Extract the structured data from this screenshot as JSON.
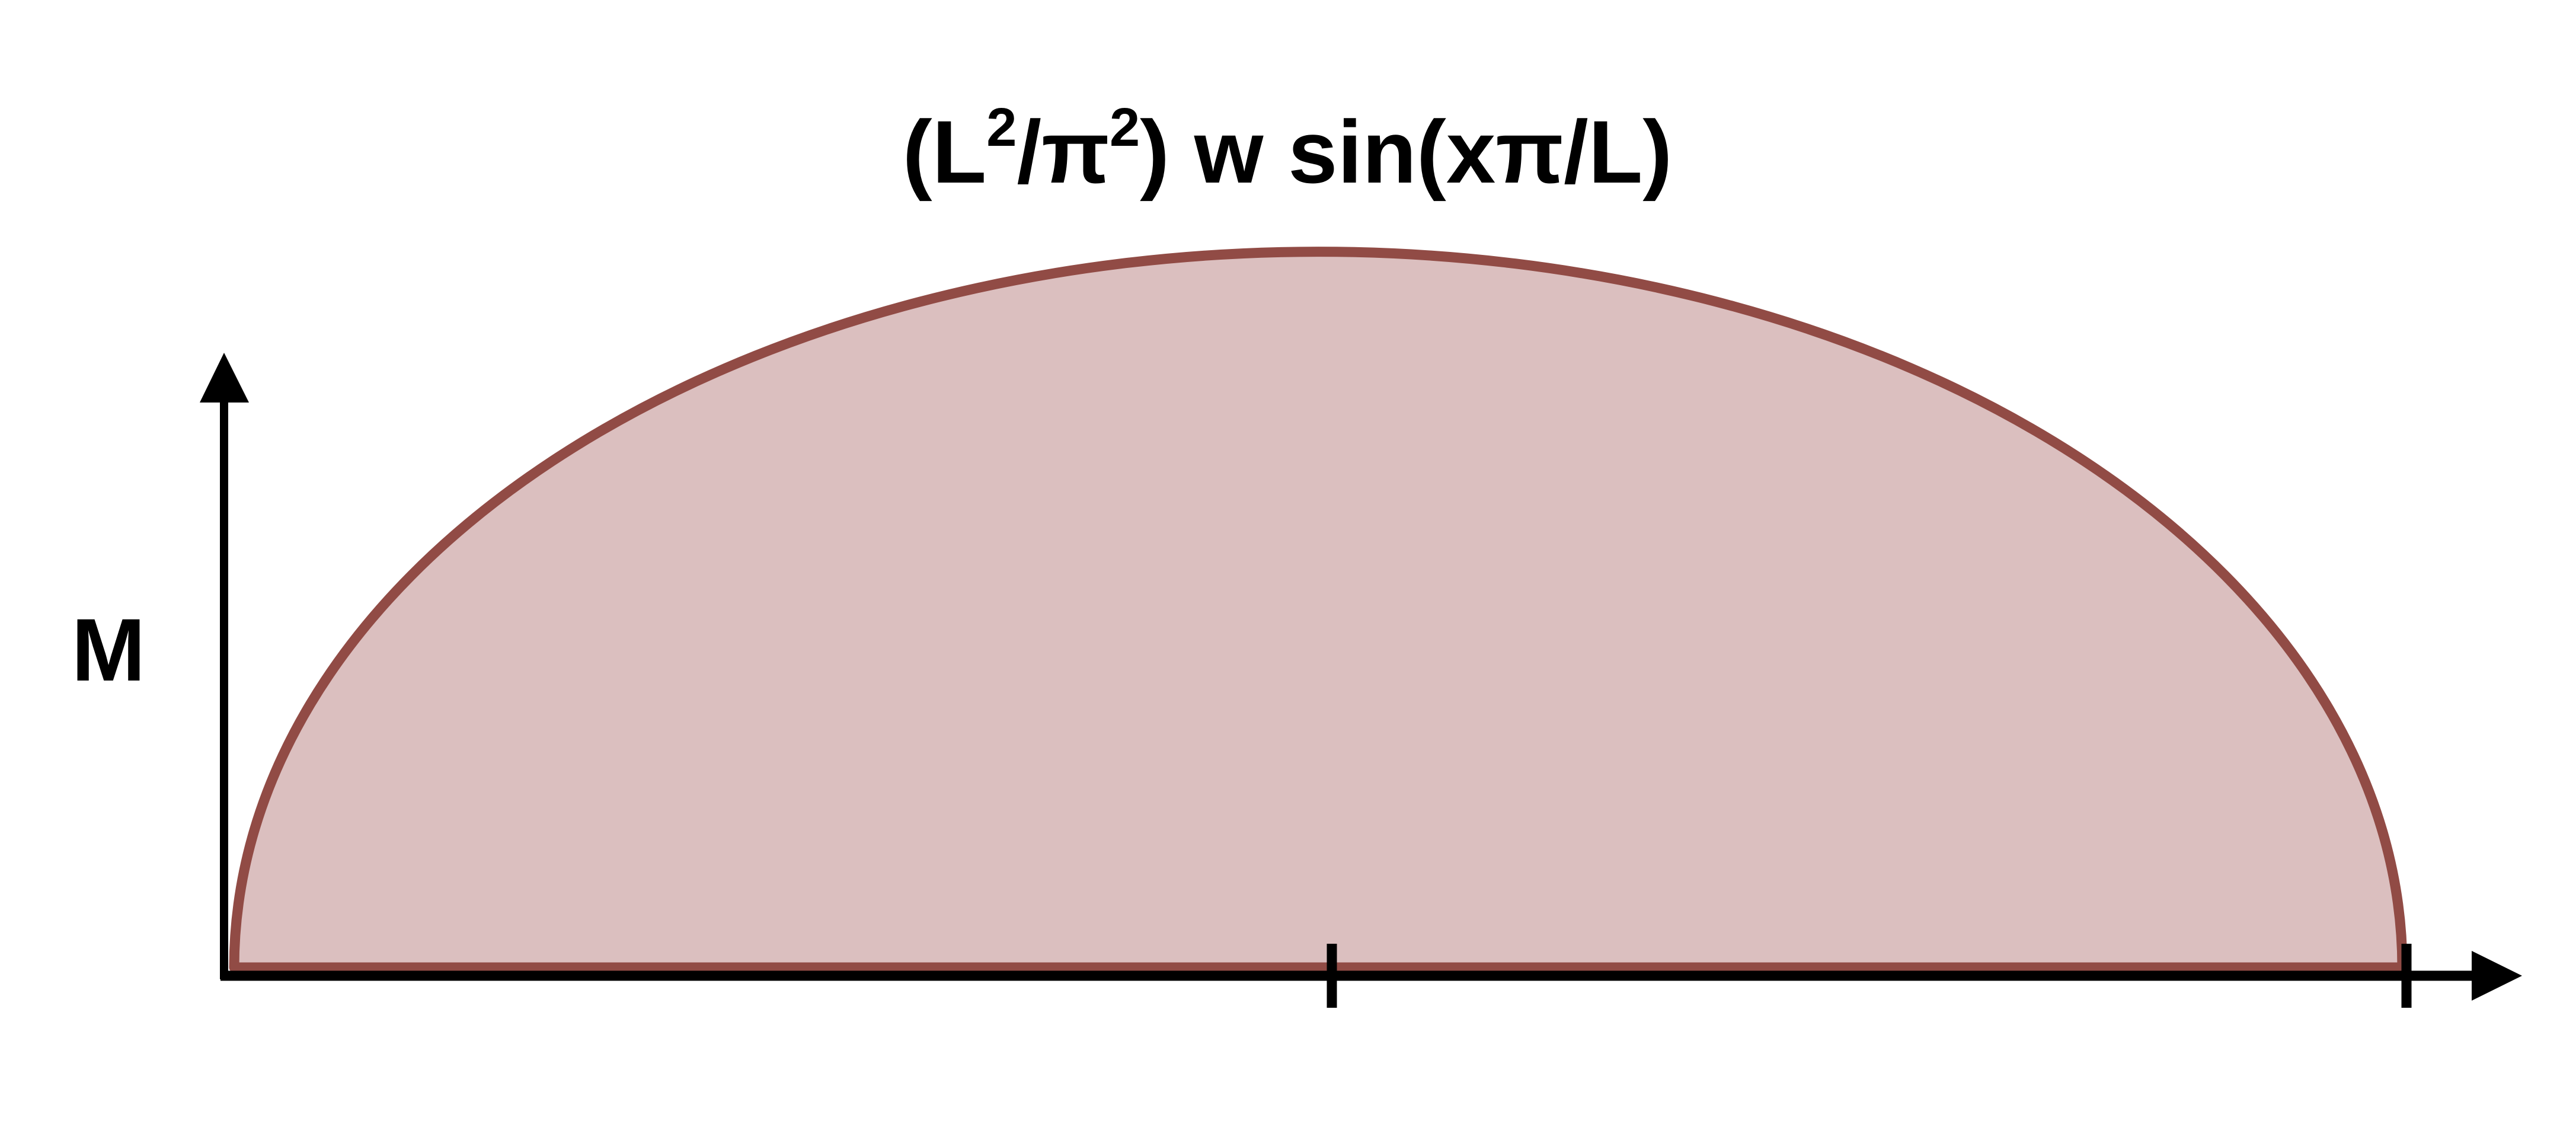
{
  "diagram": {
    "title": {
      "prefix": "(L",
      "sup1": "2",
      "mid": "/π",
      "sup2": "2",
      "suffix": ") w sin(xπ/L)"
    },
    "y_axis_label": "M",
    "curve": {
      "function": "sin(xπ/L)",
      "stroke_color": "#914b45",
      "fill_color": "#dbbfbf"
    },
    "axis_color": "#000000"
  }
}
